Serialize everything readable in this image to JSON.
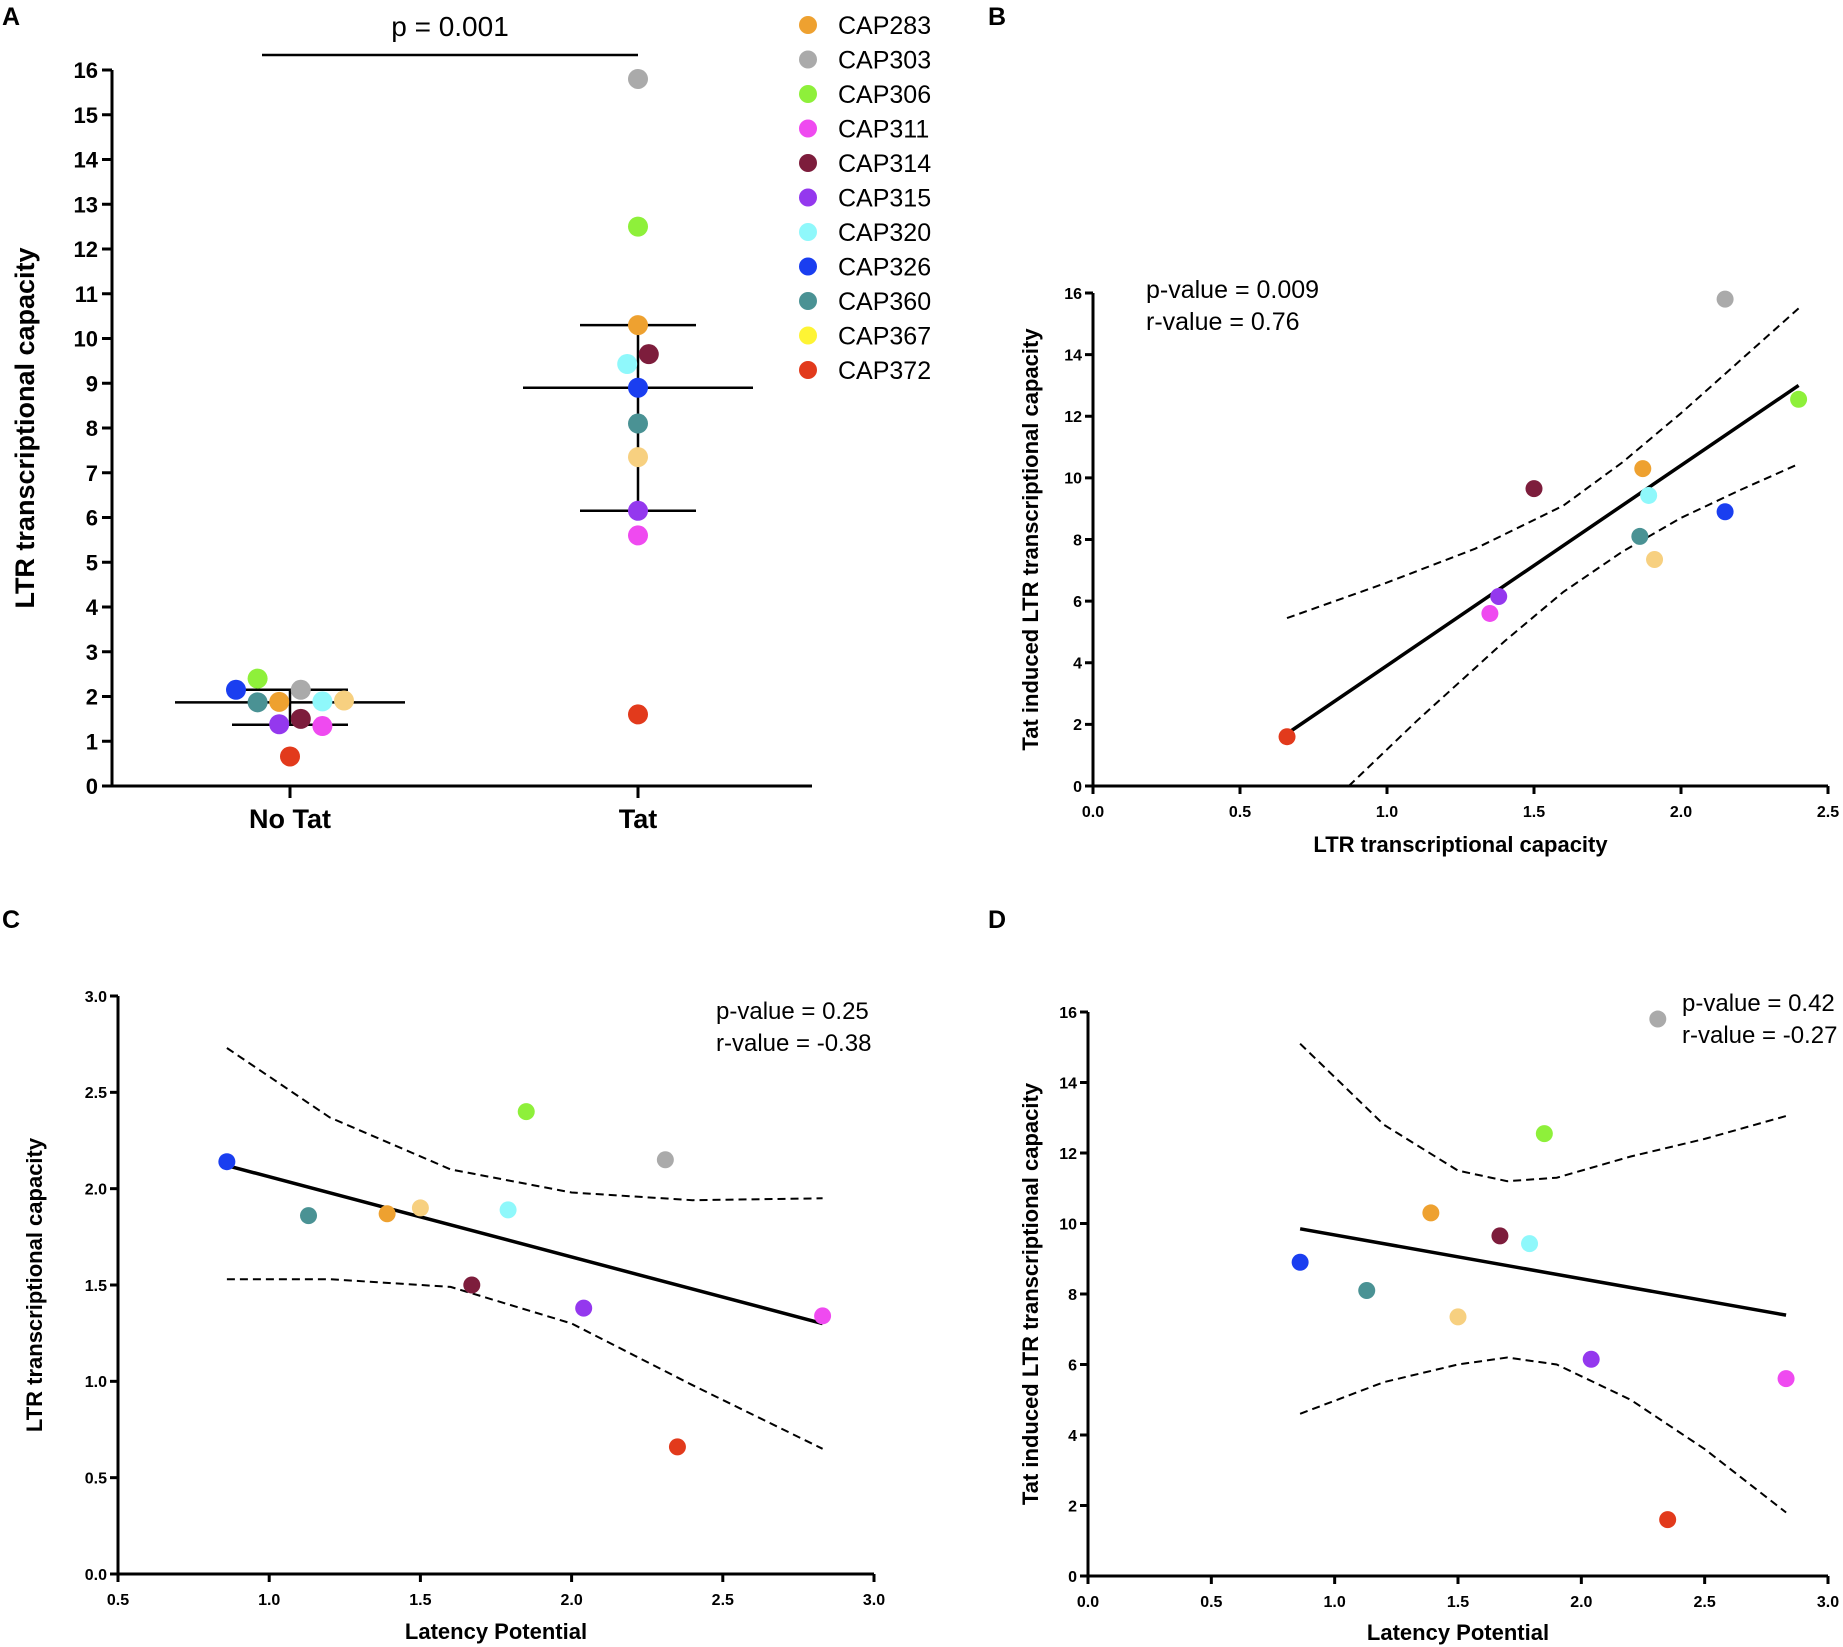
{
  "colors": {
    "CAP283": "#eea130",
    "CAP303": "#aaaaaa",
    "CAP306": "#8ef03a",
    "CAP311": "#ef4af0",
    "CAP314": "#7d1d3c",
    "CAP315": "#9438ee",
    "CAP320": "#8ff8fb",
    "CAP326": "#1a3ef0",
    "CAP360": "#4a9294",
    "CAP367": "#fef434",
    "CAP372": "#e23a1c",
    "CAP367_marker": "#f7d080"
  },
  "legend": {
    "items": [
      "CAP283",
      "CAP303",
      "CAP306",
      "CAP311",
      "CAP314",
      "CAP315",
      "CAP320",
      "CAP326",
      "CAP360",
      "CAP367",
      "CAP372"
    ]
  },
  "chart_data": [
    {
      "panel": "A",
      "type": "scatter",
      "title": "",
      "xlabel": "",
      "ylabel": "LTR transcriptional capacity",
      "ylim": [
        0,
        16
      ],
      "yticks": [
        "0",
        "1",
        "2",
        "3",
        "4",
        "5",
        "6",
        "7",
        "8",
        "9",
        "10",
        "11",
        "12",
        "13",
        "14",
        "15",
        "16"
      ],
      "categories": [
        "No Tat",
        "Tat"
      ],
      "annotation": "p = 0.001",
      "points": [
        {
          "sample": "CAP326",
          "group": "No Tat",
          "jitter": -0.3,
          "y": 2.15
        },
        {
          "sample": "CAP306",
          "group": "No Tat",
          "jitter": -0.18,
          "y": 2.4
        },
        {
          "sample": "CAP360",
          "group": "No Tat",
          "jitter": -0.18,
          "y": 1.87
        },
        {
          "sample": "CAP315",
          "group": "No Tat",
          "jitter": -0.06,
          "y": 1.38
        },
        {
          "sample": "CAP283",
          "group": "No Tat",
          "jitter": -0.06,
          "y": 1.88
        },
        {
          "sample": "CAP372",
          "group": "No Tat",
          "jitter": 0.0,
          "y": 0.66
        },
        {
          "sample": "CAP303",
          "group": "No Tat",
          "jitter": 0.06,
          "y": 2.15
        },
        {
          "sample": "CAP314",
          "group": "No Tat",
          "jitter": 0.06,
          "y": 1.5
        },
        {
          "sample": "CAP320",
          "group": "No Tat",
          "jitter": 0.18,
          "y": 1.89
        },
        {
          "sample": "CAP311",
          "group": "No Tat",
          "jitter": 0.18,
          "y": 1.34
        },
        {
          "sample": "CAP367",
          "group": "No Tat",
          "jitter": 0.3,
          "y": 1.91
        },
        {
          "sample": "CAP303",
          "group": "Tat",
          "jitter": 0.0,
          "y": 15.8
        },
        {
          "sample": "CAP306",
          "group": "Tat",
          "jitter": 0.0,
          "y": 12.5
        },
        {
          "sample": "CAP283",
          "group": "Tat",
          "jitter": 0.0,
          "y": 10.3
        },
        {
          "sample": "CAP314",
          "group": "Tat",
          "jitter": 0.06,
          "y": 9.65
        },
        {
          "sample": "CAP320",
          "group": "Tat",
          "jitter": -0.06,
          "y": 9.43
        },
        {
          "sample": "CAP326",
          "group": "Tat",
          "jitter": 0.0,
          "y": 8.9
        },
        {
          "sample": "CAP360",
          "group": "Tat",
          "jitter": 0.0,
          "y": 8.1
        },
        {
          "sample": "CAP367",
          "group": "Tat",
          "jitter": 0.0,
          "y": 7.35
        },
        {
          "sample": "CAP315",
          "group": "Tat",
          "jitter": 0.0,
          "y": 6.15
        },
        {
          "sample": "CAP311",
          "group": "Tat",
          "jitter": 0.0,
          "y": 5.6
        },
        {
          "sample": "CAP372",
          "group": "Tat",
          "jitter": 0.0,
          "y": 1.6
        }
      ],
      "summary": [
        {
          "group": "No Tat",
          "mean": 1.87,
          "lower": 1.37,
          "upper": 2.15
        },
        {
          "group": "Tat",
          "mean": 8.9,
          "lower": 6.15,
          "upper": 10.3
        }
      ]
    },
    {
      "panel": "B",
      "type": "scatter",
      "xlabel": "LTR transcriptional capacity",
      "ylabel": "Tat induced LTR transcriptional capacity",
      "xlim": [
        0,
        2.5
      ],
      "ylim": [
        0,
        16
      ],
      "xticks": [
        "0.0",
        "0.5",
        "1.0",
        "1.5",
        "2.0",
        "2.5"
      ],
      "yticks": [
        "0",
        "2",
        "4",
        "6",
        "8",
        "10",
        "12",
        "14",
        "16"
      ],
      "stats": [
        "p-value = 0.009",
        "r-value =  0.76"
      ],
      "points": [
        {
          "sample": "CAP303",
          "x": 2.15,
          "y": 15.8
        },
        {
          "sample": "CAP306",
          "x": 2.4,
          "y": 12.55
        },
        {
          "sample": "CAP283",
          "x": 1.87,
          "y": 10.3
        },
        {
          "sample": "CAP314",
          "x": 1.5,
          "y": 9.65
        },
        {
          "sample": "CAP320",
          "x": 1.89,
          "y": 9.43
        },
        {
          "sample": "CAP326",
          "x": 2.15,
          "y": 8.9
        },
        {
          "sample": "CAP360",
          "x": 1.86,
          "y": 8.1
        },
        {
          "sample": "CAP367",
          "x": 1.91,
          "y": 7.35
        },
        {
          "sample": "CAP315",
          "x": 1.38,
          "y": 6.15
        },
        {
          "sample": "CAP311",
          "x": 1.35,
          "y": 5.6
        },
        {
          "sample": "CAP372",
          "x": 0.66,
          "y": 1.6
        }
      ],
      "fit": {
        "x": [
          0.66,
          2.4
        ],
        "y": [
          1.7,
          13.0
        ]
      },
      "ci_upper": {
        "x": [
          0.66,
          1.0,
          1.3,
          1.6,
          1.8,
          2.0,
          2.2,
          2.4
        ],
        "y": [
          5.45,
          6.6,
          7.7,
          9.1,
          10.5,
          12.1,
          13.8,
          15.5
        ]
      },
      "ci_lower": {
        "x": [
          0.87,
          1.1,
          1.4,
          1.6,
          1.8,
          2.0,
          2.2,
          2.4
        ],
        "y": [
          0.0,
          2.1,
          4.7,
          6.3,
          7.6,
          8.7,
          9.6,
          10.45
        ]
      }
    },
    {
      "panel": "C",
      "type": "scatter",
      "xlabel": "Latency Potential",
      "ylabel": "LTR transcriptional capacity",
      "xlim": [
        0.5,
        3.0
      ],
      "ylim": [
        0.0,
        3.0
      ],
      "xticks": [
        "0.5",
        "1.0",
        "1.5",
        "2.0",
        "2.5",
        "3.0"
      ],
      "yticks": [
        "0.0",
        "0.5",
        "1.0",
        "1.5",
        "2.0",
        "2.5",
        "3.0"
      ],
      "stats": [
        "p-value = 0.25",
        "r-value = -0.38"
      ],
      "points": [
        {
          "sample": "CAP326",
          "x": 0.86,
          "y": 2.14
        },
        {
          "sample": "CAP360",
          "x": 1.13,
          "y": 1.86
        },
        {
          "sample": "CAP283",
          "x": 1.39,
          "y": 1.87
        },
        {
          "sample": "CAP367",
          "x": 1.5,
          "y": 1.9
        },
        {
          "sample": "CAP314",
          "x": 1.67,
          "y": 1.5
        },
        {
          "sample": "CAP320",
          "x": 1.79,
          "y": 1.89
        },
        {
          "sample": "CAP306",
          "x": 1.85,
          "y": 2.4
        },
        {
          "sample": "CAP315",
          "x": 2.04,
          "y": 1.38
        },
        {
          "sample": "CAP303",
          "x": 2.31,
          "y": 2.15
        },
        {
          "sample": "CAP372",
          "x": 2.35,
          "y": 0.66
        },
        {
          "sample": "CAP311",
          "x": 2.83,
          "y": 1.34
        }
      ],
      "fit": {
        "x": [
          0.86,
          2.83
        ],
        "y": [
          2.12,
          1.3
        ]
      },
      "ci_upper": {
        "x": [
          0.86,
          1.2,
          1.6,
          2.0,
          2.4,
          2.83
        ],
        "y": [
          2.73,
          2.37,
          2.1,
          1.98,
          1.94,
          1.95
        ]
      },
      "ci_lower": {
        "x": [
          0.86,
          1.2,
          1.6,
          2.0,
          2.4,
          2.83
        ],
        "y": [
          1.53,
          1.53,
          1.49,
          1.3,
          0.98,
          0.65
        ]
      }
    },
    {
      "panel": "D",
      "type": "scatter",
      "xlabel": "Latency Potential",
      "ylabel": "Tat induced LTR transcriptional capacity",
      "xlim": [
        0.0,
        3.0
      ],
      "ylim": [
        0,
        16
      ],
      "xticks": [
        "0.0",
        "0.5",
        "1.0",
        "1.5",
        "2.0",
        "2.5",
        "3.0"
      ],
      "yticks": [
        "0",
        "2",
        "4",
        "6",
        "8",
        "10",
        "12",
        "14",
        "16"
      ],
      "stats": [
        "p-value = 0.42",
        "r-value = -0.27"
      ],
      "points": [
        {
          "sample": "CAP326",
          "x": 0.86,
          "y": 8.9
        },
        {
          "sample": "CAP360",
          "x": 1.13,
          "y": 8.1
        },
        {
          "sample": "CAP283",
          "x": 1.39,
          "y": 10.3
        },
        {
          "sample": "CAP367",
          "x": 1.5,
          "y": 7.35
        },
        {
          "sample": "CAP314",
          "x": 1.67,
          "y": 9.65
        },
        {
          "sample": "CAP320",
          "x": 1.79,
          "y": 9.43
        },
        {
          "sample": "CAP306",
          "x": 1.85,
          "y": 12.55
        },
        {
          "sample": "CAP315",
          "x": 2.04,
          "y": 6.15
        },
        {
          "sample": "CAP303",
          "x": 2.31,
          "y": 15.8
        },
        {
          "sample": "CAP372",
          "x": 2.35,
          "y": 1.6
        },
        {
          "sample": "CAP311",
          "x": 2.83,
          "y": 5.6
        }
      ],
      "fit": {
        "x": [
          0.86,
          2.83
        ],
        "y": [
          9.85,
          7.4
        ]
      },
      "ci_upper": {
        "x": [
          0.86,
          1.2,
          1.5,
          1.7,
          1.9,
          2.2,
          2.5,
          2.83
        ],
        "y": [
          15.1,
          12.8,
          11.5,
          11.2,
          11.3,
          11.9,
          12.4,
          13.05
        ]
      },
      "ci_lower": {
        "x": [
          0.86,
          1.2,
          1.5,
          1.7,
          1.9,
          2.2,
          2.5,
          2.83
        ],
        "y": [
          4.6,
          5.5,
          6.0,
          6.2,
          6.0,
          5.0,
          3.6,
          1.8
        ]
      }
    }
  ],
  "panels": {
    "A": "A",
    "B": "B",
    "C": "C",
    "D": "D"
  }
}
